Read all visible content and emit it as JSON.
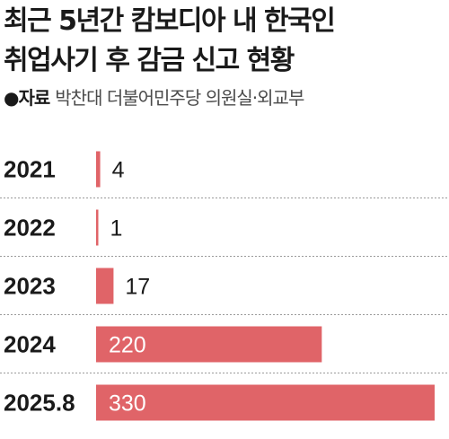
{
  "title_lines": [
    "최근 5년간 캄보디아 내 한국인",
    "취업사기 후 감금 신고 현황"
  ],
  "source": {
    "bullet": "●",
    "label": "자료",
    "text": "박찬대 더불어민주당 의원실·외교부"
  },
  "colors": {
    "bar": "#e06468",
    "divider": "#9a9a9a",
    "text": "#1a1a1a",
    "label_inside": "#ffffff"
  },
  "chart_data": {
    "type": "bar",
    "orientation": "horizontal",
    "title": "최근 5년간 캄보디아 내 한국인 취업사기 후 감금 신고 현황",
    "categories": [
      "2021",
      "2022",
      "2023",
      "2024",
      "2025.8"
    ],
    "values": [
      4,
      1,
      17,
      220,
      330
    ],
    "value_labels": [
      "4",
      "1",
      "17",
      "220",
      "330"
    ],
    "xlim": [
      0,
      330
    ],
    "grid": false,
    "legend": "none"
  }
}
